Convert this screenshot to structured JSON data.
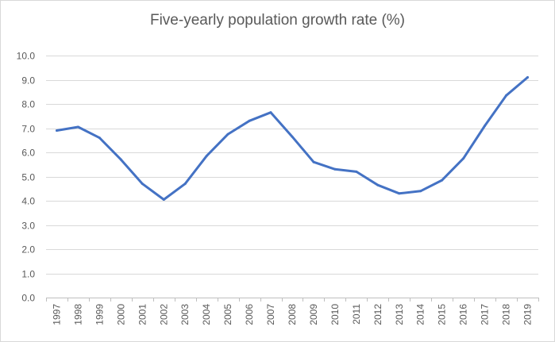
{
  "chart_data": {
    "type": "line",
    "title": "Five-yearly population growth rate (%)",
    "xlabel": "",
    "ylabel": "",
    "ylim": [
      0,
      10
    ],
    "y_ticks": [
      "0.0",
      "1.0",
      "2.0",
      "3.0",
      "4.0",
      "5.0",
      "6.0",
      "7.0",
      "8.0",
      "9.0",
      "10.0"
    ],
    "grid": true,
    "legend": "none",
    "line_color": "#4472c4",
    "categories": [
      "1997",
      "1998",
      "1999",
      "2000",
      "2001",
      "2002",
      "2003",
      "2004",
      "2005",
      "2006",
      "2007",
      "2008",
      "2009",
      "2010",
      "2011",
      "2012",
      "2013",
      "2014",
      "2015",
      "2016",
      "2017",
      "2018",
      "2019"
    ],
    "series": [
      {
        "name": "Five-yearly population growth rate (%)",
        "values": [
          6.9,
          7.05,
          6.6,
          5.7,
          4.7,
          4.05,
          4.7,
          5.85,
          6.75,
          7.3,
          7.65,
          6.65,
          5.6,
          5.3,
          5.2,
          4.65,
          4.3,
          4.4,
          4.85,
          5.75,
          7.1,
          8.35,
          9.1
        ]
      }
    ]
  }
}
